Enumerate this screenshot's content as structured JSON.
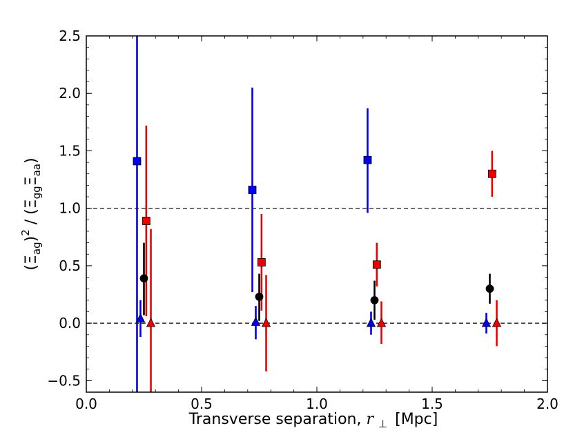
{
  "chart_data": {
    "type": "scatter",
    "xlabel_text": "Transverse separation,",
    "xlabel_symbol": "r",
    "xlabel_subscript": "⊥",
    "xlabel_unit": "[Mpc]",
    "ylabel": "(Ξag)² / (Ξgg Ξaa)",
    "ylabel_parts": {
      "open": "(",
      "xi1": "Ξ",
      "sub1": "ag",
      "close1": ")",
      "sup": "2",
      "slash": " / (",
      "xi2": "Ξ",
      "sub2": "gg",
      "xi3": "Ξ",
      "sub3": "aa",
      "close2": ")"
    },
    "xlim": [
      0.0,
      2.0
    ],
    "ylim": [
      -0.6,
      2.5
    ],
    "xticks": [
      0.0,
      0.5,
      1.0,
      1.5,
      2.0
    ],
    "xtick_labels": [
      "0.0",
      "0.5",
      "1.0",
      "1.5",
      "2.0"
    ],
    "yticks": [
      -0.5,
      0.0,
      0.5,
      1.0,
      1.5,
      2.0,
      2.5
    ],
    "ytick_labels": [
      "−0.5",
      "0.0",
      "0.5",
      "1.0",
      "1.5",
      "2.0",
      "2.5"
    ],
    "reference_lines": [
      0.0,
      1.0
    ],
    "series": [
      {
        "name": "blue-squares",
        "color": "#0000ee",
        "marker": "square",
        "points": [
          {
            "x": 0.22,
            "y": 1.41,
            "ylo": -0.6,
            "yhi": 2.5
          },
          {
            "x": 0.72,
            "y": 1.16,
            "ylo": 0.27,
            "yhi": 2.05
          },
          {
            "x": 1.22,
            "y": 1.42,
            "ylo": 0.96,
            "yhi": 1.87
          }
        ]
      },
      {
        "name": "red-squares",
        "color": "#ee0000",
        "marker": "square",
        "points": [
          {
            "x": 0.26,
            "y": 0.89,
            "ylo": 0.06,
            "yhi": 1.72
          },
          {
            "x": 0.76,
            "y": 0.53,
            "ylo": 0.11,
            "yhi": 0.95
          },
          {
            "x": 1.26,
            "y": 0.51,
            "ylo": 0.32,
            "yhi": 0.7
          },
          {
            "x": 1.76,
            "y": 1.3,
            "ylo": 1.1,
            "yhi": 1.5
          }
        ]
      },
      {
        "name": "black-circles",
        "color": "#000000",
        "marker": "circle",
        "points": [
          {
            "x": 0.25,
            "y": 0.39,
            "ylo": 0.07,
            "yhi": 0.7
          },
          {
            "x": 0.75,
            "y": 0.23,
            "ylo": 0.02,
            "yhi": 0.43
          },
          {
            "x": 1.25,
            "y": 0.2,
            "ylo": 0.03,
            "yhi": 0.37
          },
          {
            "x": 1.75,
            "y": 0.3,
            "ylo": 0.17,
            "yhi": 0.43
          }
        ]
      },
      {
        "name": "blue-triangles",
        "color": "#0000ee",
        "marker": "triangle",
        "points": [
          {
            "x": 0.235,
            "y": 0.04,
            "ylo": -0.12,
            "yhi": 0.2
          },
          {
            "x": 0.735,
            "y": 0.01,
            "ylo": -0.14,
            "yhi": 0.15
          },
          {
            "x": 1.235,
            "y": 0.0,
            "ylo": -0.1,
            "yhi": 0.1
          },
          {
            "x": 1.735,
            "y": 0.0,
            "ylo": -0.09,
            "yhi": 0.09
          }
        ]
      },
      {
        "name": "red-triangles",
        "color": "#ee0000",
        "marker": "triangle",
        "points": [
          {
            "x": 0.28,
            "y": 0.0,
            "ylo": -0.6,
            "yhi": 0.82
          },
          {
            "x": 0.78,
            "y": 0.0,
            "ylo": -0.42,
            "yhi": 0.42
          },
          {
            "x": 1.28,
            "y": 0.0,
            "ylo": -0.18,
            "yhi": 0.19
          },
          {
            "x": 1.78,
            "y": 0.0,
            "ylo": -0.2,
            "yhi": 0.2
          }
        ]
      }
    ]
  }
}
